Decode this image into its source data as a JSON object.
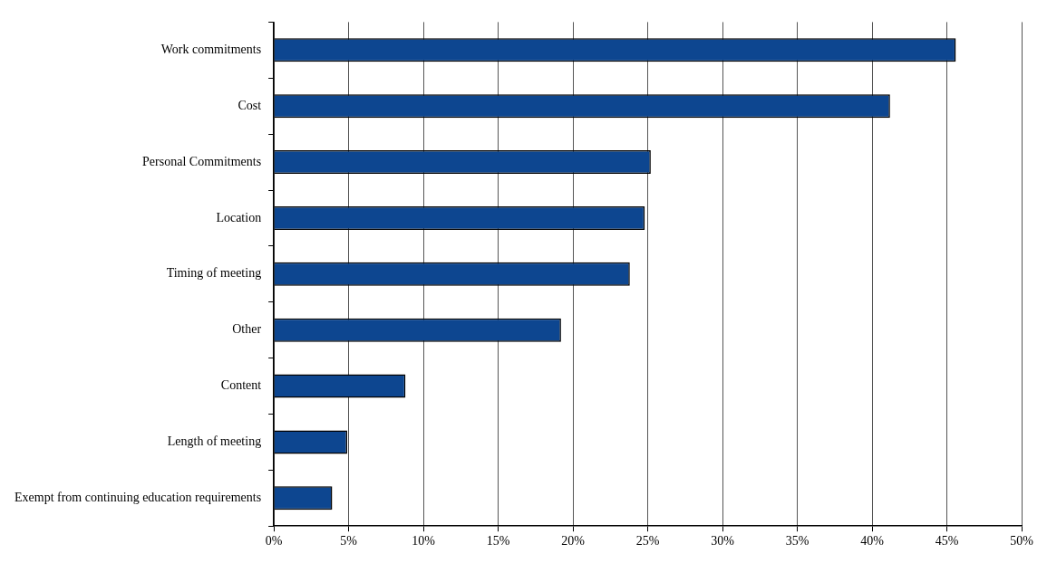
{
  "chart_data": {
    "type": "bar",
    "orientation": "horizontal",
    "categories": [
      "Work commitments",
      "Cost",
      "Personal Commitments",
      "Location",
      "Timing of meeting",
      "Other",
      "Content",
      "Length of meeting",
      "Exempt from continuing education requirements"
    ],
    "values": [
      45.6,
      41.2,
      25.2,
      24.8,
      23.8,
      19.2,
      8.8,
      4.9,
      3.9
    ],
    "color": "#0d4690",
    "xlim": [
      0,
      50
    ],
    "xticks": [
      {
        "value": 0,
        "label": "0%"
      },
      {
        "value": 5,
        "label": "5%"
      },
      {
        "value": 10,
        "label": "10%"
      },
      {
        "value": 15,
        "label": "15%"
      },
      {
        "value": 20,
        "label": "20%"
      },
      {
        "value": 25,
        "label": "25%"
      },
      {
        "value": 30,
        "label": "30%"
      },
      {
        "value": 35,
        "label": "35%"
      },
      {
        "value": 40,
        "label": "40%"
      },
      {
        "value": 45,
        "label": "45%"
      },
      {
        "value": 50,
        "label": "50%"
      }
    ],
    "grid": "x",
    "legend": false
  }
}
